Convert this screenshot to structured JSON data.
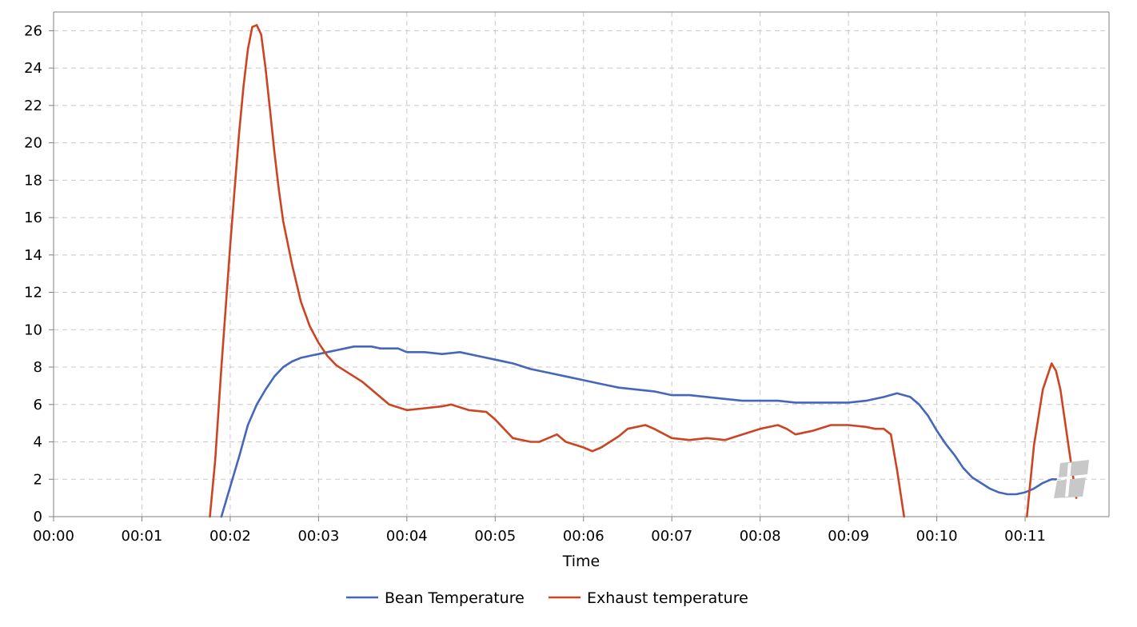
{
  "chart_data": {
    "type": "line",
    "xlabel": "Time",
    "ylabel": "",
    "xlim": [
      0,
      11.95
    ],
    "ylim": [
      0,
      27
    ],
    "x_ticks": [
      0,
      1,
      2,
      3,
      4,
      5,
      6,
      7,
      8,
      9,
      10,
      11
    ],
    "x_tick_labels": [
      "00:00",
      "00:01",
      "00:02",
      "00:03",
      "00:04",
      "00:05",
      "00:06",
      "00:07",
      "00:08",
      "00:09",
      "00:10",
      "00:11"
    ],
    "y_ticks": [
      0,
      2,
      4,
      6,
      8,
      10,
      12,
      14,
      16,
      18,
      20,
      22,
      24,
      26
    ],
    "y_tick_labels": [
      "0",
      "2",
      "4",
      "6",
      "8",
      "10",
      "12",
      "14",
      "16",
      "18",
      "20",
      "22",
      "24",
      "26"
    ],
    "grid": true,
    "legend_position": "bottom",
    "series": [
      {
        "name": "Bean Temperature",
        "color": "#4466bb",
        "points": [
          [
            1.9,
            0
          ],
          [
            2.0,
            1.6
          ],
          [
            2.1,
            3.2
          ],
          [
            2.2,
            4.9
          ],
          [
            2.3,
            6.0
          ],
          [
            2.4,
            6.8
          ],
          [
            2.5,
            7.5
          ],
          [
            2.6,
            8.0
          ],
          [
            2.7,
            8.3
          ],
          [
            2.8,
            8.5
          ],
          [
            2.9,
            8.6
          ],
          [
            3.0,
            8.7
          ],
          [
            3.1,
            8.8
          ],
          [
            3.2,
            8.9
          ],
          [
            3.3,
            9.0
          ],
          [
            3.4,
            9.1
          ],
          [
            3.6,
            9.1
          ],
          [
            3.7,
            9.0
          ],
          [
            3.9,
            9.0
          ],
          [
            4.0,
            8.8
          ],
          [
            4.2,
            8.8
          ],
          [
            4.4,
            8.7
          ],
          [
            4.6,
            8.8
          ],
          [
            4.8,
            8.6
          ],
          [
            5.0,
            8.4
          ],
          [
            5.2,
            8.2
          ],
          [
            5.4,
            7.9
          ],
          [
            5.6,
            7.7
          ],
          [
            5.8,
            7.5
          ],
          [
            6.0,
            7.3
          ],
          [
            6.2,
            7.1
          ],
          [
            6.4,
            6.9
          ],
          [
            6.6,
            6.8
          ],
          [
            6.8,
            6.7
          ],
          [
            7.0,
            6.5
          ],
          [
            7.2,
            6.5
          ],
          [
            7.4,
            6.4
          ],
          [
            7.6,
            6.3
          ],
          [
            7.8,
            6.2
          ],
          [
            8.0,
            6.2
          ],
          [
            8.2,
            6.2
          ],
          [
            8.4,
            6.1
          ],
          [
            8.6,
            6.1
          ],
          [
            8.8,
            6.1
          ],
          [
            9.0,
            6.1
          ],
          [
            9.2,
            6.2
          ],
          [
            9.4,
            6.4
          ],
          [
            9.55,
            6.6
          ],
          [
            9.7,
            6.4
          ],
          [
            9.8,
            6.0
          ],
          [
            9.9,
            5.4
          ],
          [
            10.0,
            4.6
          ],
          [
            10.1,
            3.9
          ],
          [
            10.2,
            3.3
          ],
          [
            10.3,
            2.6
          ],
          [
            10.4,
            2.1
          ],
          [
            10.5,
            1.8
          ],
          [
            10.6,
            1.5
          ],
          [
            10.7,
            1.3
          ],
          [
            10.8,
            1.2
          ],
          [
            10.9,
            1.2
          ],
          [
            11.0,
            1.3
          ],
          [
            11.1,
            1.5
          ],
          [
            11.2,
            1.8
          ],
          [
            11.3,
            2.0
          ],
          [
            11.35,
            2.0
          ]
        ]
      },
      {
        "name": "Exhaust temperature",
        "color": "#cc4422",
        "points": [
          [
            1.77,
            0
          ],
          [
            1.83,
            3.0
          ],
          [
            1.9,
            8.0
          ],
          [
            2.0,
            14.5
          ],
          [
            2.05,
            17.5
          ],
          [
            2.1,
            20.5
          ],
          [
            2.15,
            23.0
          ],
          [
            2.2,
            25.0
          ],
          [
            2.25,
            26.2
          ],
          [
            2.3,
            26.3
          ],
          [
            2.35,
            25.8
          ],
          [
            2.4,
            24.0
          ],
          [
            2.45,
            21.8
          ],
          [
            2.5,
            19.5
          ],
          [
            2.55,
            17.5
          ],
          [
            2.6,
            15.8
          ],
          [
            2.7,
            13.5
          ],
          [
            2.8,
            11.5
          ],
          [
            2.9,
            10.2
          ],
          [
            3.0,
            9.3
          ],
          [
            3.1,
            8.6
          ],
          [
            3.2,
            8.1
          ],
          [
            3.4,
            7.5
          ],
          [
            3.5,
            7.2
          ],
          [
            3.6,
            6.8
          ],
          [
            3.8,
            6.0
          ],
          [
            4.0,
            5.7
          ],
          [
            4.2,
            5.8
          ],
          [
            4.4,
            5.9
          ],
          [
            4.5,
            6.0
          ],
          [
            4.7,
            5.7
          ],
          [
            4.9,
            5.6
          ],
          [
            5.0,
            5.2
          ],
          [
            5.1,
            4.7
          ],
          [
            5.2,
            4.2
          ],
          [
            5.4,
            4.0
          ],
          [
            5.5,
            4.0
          ],
          [
            5.6,
            4.2
          ],
          [
            5.7,
            4.4
          ],
          [
            5.8,
            4.0
          ],
          [
            6.0,
            3.7
          ],
          [
            6.1,
            3.5
          ],
          [
            6.2,
            3.7
          ],
          [
            6.4,
            4.3
          ],
          [
            6.5,
            4.7
          ],
          [
            6.7,
            4.9
          ],
          [
            6.8,
            4.7
          ],
          [
            7.0,
            4.2
          ],
          [
            7.2,
            4.1
          ],
          [
            7.4,
            4.2
          ],
          [
            7.6,
            4.1
          ],
          [
            7.8,
            4.4
          ],
          [
            8.0,
            4.7
          ],
          [
            8.2,
            4.9
          ],
          [
            8.3,
            4.7
          ],
          [
            8.4,
            4.4
          ],
          [
            8.6,
            4.6
          ],
          [
            8.8,
            4.9
          ],
          [
            9.0,
            4.9
          ],
          [
            9.2,
            4.8
          ],
          [
            9.3,
            4.7
          ],
          [
            9.4,
            4.7
          ],
          [
            9.48,
            4.4
          ],
          [
            9.55,
            2.5
          ],
          [
            9.63,
            0
          ],
          null,
          [
            11.02,
            0
          ],
          [
            11.1,
            3.8
          ],
          [
            11.2,
            6.8
          ],
          [
            11.3,
            8.2
          ],
          [
            11.35,
            7.8
          ],
          [
            11.4,
            6.8
          ],
          [
            11.5,
            3.5
          ],
          [
            11.58,
            1.0
          ]
        ]
      }
    ]
  }
}
